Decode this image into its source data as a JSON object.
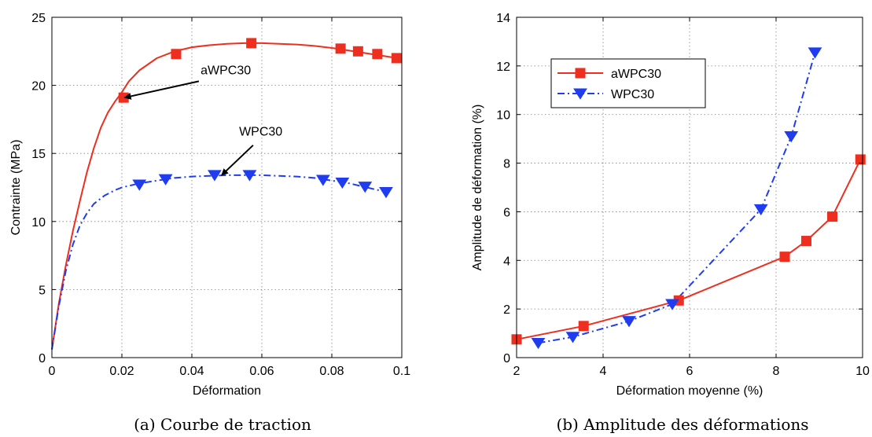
{
  "colors": {
    "red": "#ee2f1f",
    "blue": "#1f3cf0"
  },
  "chart_data": [
    {
      "type": "line",
      "caption": "(a) Courbe de traction",
      "xlabel": "Déformation",
      "ylabel": "Contrainte (MPa)",
      "xlim": [
        0,
        0.1
      ],
      "ylim": [
        0,
        25
      ],
      "xticks": [
        0,
        0.02,
        0.04,
        0.06,
        0.08,
        0.1
      ],
      "xtick_labels": [
        "0",
        "0.02",
        "0.04",
        "0.06",
        "0.08",
        "0.1"
      ],
      "yticks": [
        0,
        5,
        10,
        15,
        20,
        25
      ],
      "ytick_labels": [
        "0",
        "5",
        "10",
        "15",
        "20",
        "25"
      ],
      "grid": true,
      "series": [
        {
          "name": "aWPC30",
          "color": "#ee2f1f",
          "style": "solid",
          "marker": "square",
          "curve_x": [
            0,
            0.002,
            0.004,
            0.006,
            0.008,
            0.01,
            0.012,
            0.014,
            0.016,
            0.018,
            0.02,
            0.022,
            0.025,
            0.03,
            0.035,
            0.04,
            0.045,
            0.05,
            0.055,
            0.06,
            0.065,
            0.07,
            0.075,
            0.08,
            0.085,
            0.09,
            0.095,
            0.1
          ],
          "curve_y": [
            0.6,
            4.0,
            6.8,
            9.3,
            11.5,
            13.6,
            15.4,
            16.9,
            18.0,
            18.8,
            19.5,
            20.3,
            21.1,
            22.0,
            22.5,
            22.8,
            22.95,
            23.05,
            23.1,
            23.1,
            23.05,
            23.0,
            22.9,
            22.75,
            22.55,
            22.35,
            22.15,
            21.95
          ],
          "markers_x": [
            0.0205,
            0.0355,
            0.057,
            0.0825,
            0.0875,
            0.093,
            0.0985
          ],
          "markers_y": [
            19.1,
            22.3,
            23.1,
            22.7,
            22.5,
            22.3,
            22.0
          ]
        },
        {
          "name": "WPC30",
          "color": "#1f3cf0",
          "style": "dashdot",
          "marker": "triangle-down",
          "curve_x": [
            0,
            0.002,
            0.004,
            0.006,
            0.008,
            0.01,
            0.012,
            0.015,
            0.018,
            0.02,
            0.025,
            0.03,
            0.035,
            0.04,
            0.045,
            0.05,
            0.055,
            0.06,
            0.065,
            0.07,
            0.075,
            0.08,
            0.085,
            0.09,
            0.095
          ],
          "curve_y": [
            0.6,
            3.8,
            6.4,
            8.3,
            9.7,
            10.6,
            11.3,
            11.9,
            12.3,
            12.5,
            12.8,
            13.0,
            13.2,
            13.3,
            13.35,
            13.4,
            13.4,
            13.4,
            13.35,
            13.3,
            13.2,
            13.0,
            12.8,
            12.5,
            12.2
          ],
          "markers_x": [
            0.025,
            0.0325,
            0.0465,
            0.0565,
            0.0775,
            0.083,
            0.0895,
            0.0955
          ],
          "markers_y": [
            12.7,
            13.1,
            13.4,
            13.4,
            13.05,
            12.85,
            12.55,
            12.15
          ]
        }
      ],
      "annotations": [
        {
          "text": "aWPC30",
          "text_x": 0.0425,
          "text_y": 20.8,
          "arrow_from_x": 0.042,
          "arrow_from_y": 20.3,
          "arrow_to_x": 0.0208,
          "arrow_to_y": 19.1
        },
        {
          "text": "WPC30",
          "text_x": 0.0535,
          "text_y": 16.3,
          "arrow_from_x": 0.0575,
          "arrow_from_y": 15.6,
          "arrow_to_x": 0.0485,
          "arrow_to_y": 13.4
        }
      ]
    },
    {
      "type": "line",
      "caption": "(b) Amplitude des déformations",
      "xlabel": "Déformation moyenne (%)",
      "ylabel": "Amplitude de déformation (%)",
      "xlim": [
        2,
        10
      ],
      "ylim": [
        0,
        14
      ],
      "xticks": [
        2,
        4,
        6,
        8,
        10
      ],
      "xtick_labels": [
        "2",
        "4",
        "6",
        "8",
        "10"
      ],
      "yticks": [
        0,
        2,
        4,
        6,
        8,
        10,
        12,
        14
      ],
      "ytick_labels": [
        "0",
        "2",
        "4",
        "6",
        "8",
        "10",
        "12",
        "14"
      ],
      "grid": true,
      "legend_position": "top-left",
      "series": [
        {
          "name": "aWPC30",
          "color": "#ee2f1f",
          "style": "solid",
          "marker": "square",
          "x": [
            2.0,
            3.55,
            5.75,
            8.2,
            8.7,
            9.3,
            9.95
          ],
          "y": [
            0.75,
            1.3,
            2.35,
            4.15,
            4.8,
            5.8,
            8.15
          ]
        },
        {
          "name": "WPC30",
          "color": "#1f3cf0",
          "style": "dashdot",
          "marker": "triangle-down",
          "x": [
            2.5,
            3.3,
            4.6,
            5.6,
            7.65,
            8.35,
            8.9
          ],
          "y": [
            0.6,
            0.85,
            1.5,
            2.2,
            6.1,
            9.1,
            12.55
          ]
        }
      ]
    }
  ]
}
